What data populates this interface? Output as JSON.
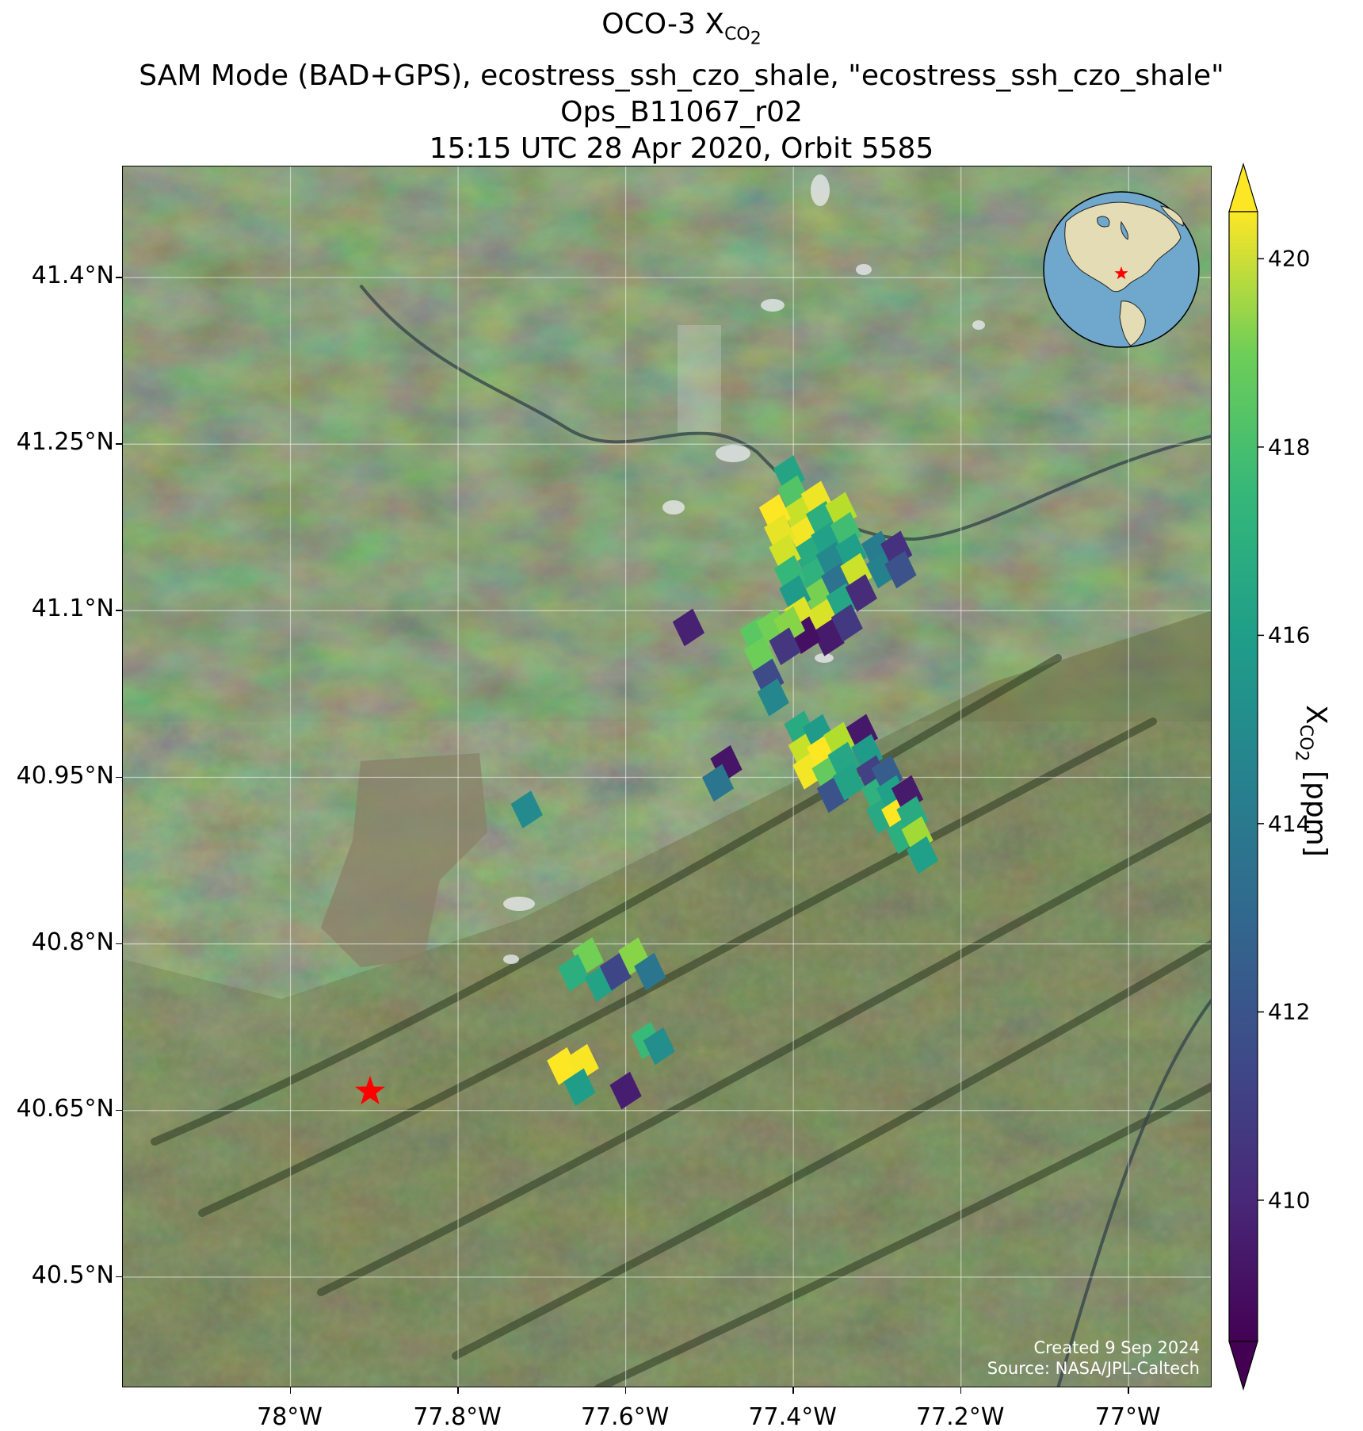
{
  "title": {
    "line1_main": "OCO-3 X",
    "line1_sub": "CO",
    "line1_sub2": "2",
    "line2": "SAM Mode (BAD+GPS), ecostress_ssh_czo_shale, \"ecostress_ssh_czo_shale\"",
    "line3": "Ops_B11067_r02",
    "line4": "15:15 UTC 28 Apr 2020, Orbit 5585"
  },
  "map": {
    "lon_range": [
      -78.2,
      -76.9
    ],
    "lat_range": [
      40.4,
      41.5
    ],
    "lat_ticks": [
      {
        "value": 41.4,
        "label": "41.4°N"
      },
      {
        "value": 41.25,
        "label": "41.25°N"
      },
      {
        "value": 41.1,
        "label": "41.1°N"
      },
      {
        "value": 40.95,
        "label": "40.95°N"
      },
      {
        "value": 40.8,
        "label": "40.8°N"
      },
      {
        "value": 40.65,
        "label": "40.65°N"
      },
      {
        "value": 40.5,
        "label": "40.5°N"
      }
    ],
    "lon_ticks": [
      {
        "value": -78.0,
        "label": "78°W"
      },
      {
        "value": -77.8,
        "label": "77.8°W"
      },
      {
        "value": -77.6,
        "label": "77.6°W"
      },
      {
        "value": -77.4,
        "label": "77.4°W"
      },
      {
        "value": -77.2,
        "label": "77.2°W"
      },
      {
        "value": -77.0,
        "label": "77°W"
      }
    ],
    "gridlines": true,
    "target_marker": {
      "lon": -77.905,
      "lat": 40.667,
      "color": "#ff0000",
      "icon": "star-icon"
    },
    "basemap": "satellite imagery",
    "colors": {
      "forest": "#3a5230",
      "valley": "#5a6238",
      "cloud": "#e6e8ea",
      "river": "#3c4a4a"
    }
  },
  "soundings": [
    {
      "lon": -77.405,
      "lat": 41.223,
      "v": 415.5
    },
    {
      "lon": -77.4,
      "lat": 41.205,
      "v": 417.2
    },
    {
      "lon": -77.394,
      "lat": 41.186,
      "v": 419.5
    },
    {
      "lon": -77.388,
      "lat": 41.168,
      "v": 420.3
    },
    {
      "lon": -77.382,
      "lat": 41.15,
      "v": 415.8
    },
    {
      "lon": -77.376,
      "lat": 41.131,
      "v": 416.2
    },
    {
      "lon": -77.37,
      "lat": 41.113,
      "v": 418.0
    },
    {
      "lon": -77.364,
      "lat": 41.094,
      "v": 419.8
    },
    {
      "lon": -77.358,
      "lat": 41.076,
      "v": 409.4
    },
    {
      "lon": -77.422,
      "lat": 41.188,
      "v": 420.5
    },
    {
      "lon": -77.416,
      "lat": 41.17,
      "v": 420.1
    },
    {
      "lon": -77.41,
      "lat": 41.152,
      "v": 419.7
    },
    {
      "lon": -77.404,
      "lat": 41.133,
      "v": 416.5
    },
    {
      "lon": -77.398,
      "lat": 41.115,
      "v": 415.0
    },
    {
      "lon": -77.392,
      "lat": 41.096,
      "v": 419.9
    },
    {
      "lon": -77.386,
      "lat": 41.078,
      "v": 409.0
    },
    {
      "lon": -77.372,
      "lat": 41.2,
      "v": 420.2
    },
    {
      "lon": -77.366,
      "lat": 41.182,
      "v": 416.0
    },
    {
      "lon": -77.36,
      "lat": 41.163,
      "v": 415.3
    },
    {
      "lon": -77.354,
      "lat": 41.145,
      "v": 414.1
    },
    {
      "lon": -77.348,
      "lat": 41.126,
      "v": 413.0
    },
    {
      "lon": -77.342,
      "lat": 41.108,
      "v": 415.6
    },
    {
      "lon": -77.336,
      "lat": 41.089,
      "v": 410.5
    },
    {
      "lon": -77.343,
      "lat": 41.19,
      "v": 419.2
    },
    {
      "lon": -77.337,
      "lat": 41.172,
      "v": 416.8
    },
    {
      "lon": -77.331,
      "lat": 41.153,
      "v": 415.2
    },
    {
      "lon": -77.325,
      "lat": 41.135,
      "v": 419.6
    },
    {
      "lon": -77.319,
      "lat": 41.116,
      "v": 410.0
    },
    {
      "lon": -77.3,
      "lat": 41.155,
      "v": 413.5
    },
    {
      "lon": -77.294,
      "lat": 41.137,
      "v": 413.8
    },
    {
      "lon": -77.277,
      "lat": 41.155,
      "v": 410.2
    },
    {
      "lon": -77.272,
      "lat": 41.137,
      "v": 411.5
    },
    {
      "lon": -77.445,
      "lat": 41.078,
      "v": 417.4
    },
    {
      "lon": -77.44,
      "lat": 41.06,
      "v": 417.8
    },
    {
      "lon": -77.425,
      "lat": 41.085,
      "v": 417.9
    },
    {
      "lon": -77.43,
      "lat": 41.04,
      "v": 411.2
    },
    {
      "lon": -77.424,
      "lat": 41.022,
      "v": 414.0
    },
    {
      "lon": -77.405,
      "lat": 41.087,
      "v": 418.3
    },
    {
      "lon": -77.41,
      "lat": 41.068,
      "v": 410.4
    },
    {
      "lon": -77.525,
      "lat": 41.085,
      "v": 409.6
    },
    {
      "lon": -77.392,
      "lat": 40.993,
      "v": 415.8
    },
    {
      "lon": -77.387,
      "lat": 40.974,
      "v": 419.5
    },
    {
      "lon": -77.382,
      "lat": 40.956,
      "v": 420.3
    },
    {
      "lon": -77.37,
      "lat": 40.99,
      "v": 415.0
    },
    {
      "lon": -77.365,
      "lat": 40.972,
      "v": 420.6
    },
    {
      "lon": -77.359,
      "lat": 40.953,
      "v": 417.6
    },
    {
      "lon": -77.353,
      "lat": 40.935,
      "v": 411.6
    },
    {
      "lon": -77.345,
      "lat": 40.983,
      "v": 419.1
    },
    {
      "lon": -77.34,
      "lat": 40.965,
      "v": 415.6
    },
    {
      "lon": -77.334,
      "lat": 40.946,
      "v": 415.4
    },
    {
      "lon": -77.318,
      "lat": 40.99,
      "v": 409.3
    },
    {
      "lon": -77.312,
      "lat": 40.972,
      "v": 415.0
    },
    {
      "lon": -77.306,
      "lat": 40.953,
      "v": 410.8
    },
    {
      "lon": -77.3,
      "lat": 40.935,
      "v": 416.2
    },
    {
      "lon": -77.294,
      "lat": 40.916,
      "v": 415.7
    },
    {
      "lon": -77.288,
      "lat": 40.953,
      "v": 412.0
    },
    {
      "lon": -77.282,
      "lat": 40.935,
      "v": 415.3
    },
    {
      "lon": -77.276,
      "lat": 40.916,
      "v": 420.5
    },
    {
      "lon": -77.27,
      "lat": 40.898,
      "v": 416.0
    },
    {
      "lon": -77.264,
      "lat": 40.935,
      "v": 409.4
    },
    {
      "lon": -77.258,
      "lat": 40.916,
      "v": 415.8
    },
    {
      "lon": -77.252,
      "lat": 40.898,
      "v": 418.8
    },
    {
      "lon": -77.246,
      "lat": 40.88,
      "v": 415.2
    },
    {
      "lon": -77.48,
      "lat": 40.962,
      "v": 409.2
    },
    {
      "lon": -77.49,
      "lat": 40.945,
      "v": 413.2
    },
    {
      "lon": -77.718,
      "lat": 40.921,
      "v": 414.2
    },
    {
      "lon": -77.645,
      "lat": 40.789,
      "v": 417.9
    },
    {
      "lon": -77.662,
      "lat": 40.774,
      "v": 416.0
    },
    {
      "lon": -77.63,
      "lat": 40.765,
      "v": 415.4
    },
    {
      "lon": -77.612,
      "lat": 40.775,
      "v": 411.0
    },
    {
      "lon": -77.59,
      "lat": 40.789,
      "v": 418.3
    },
    {
      "lon": -77.571,
      "lat": 40.775,
      "v": 413.2
    },
    {
      "lon": -77.575,
      "lat": 40.713,
      "v": 416.6
    },
    {
      "lon": -77.56,
      "lat": 40.708,
      "v": 414.4
    },
    {
      "lon": -77.675,
      "lat": 40.69,
      "v": 420.7
    },
    {
      "lon": -77.651,
      "lat": 40.693,
      "v": 420.4
    },
    {
      "lon": -77.655,
      "lat": 40.671,
      "v": 415.1
    },
    {
      "lon": -77.6,
      "lat": 40.668,
      "v": 409.5
    }
  ],
  "colorbar": {
    "vmin": 408.5,
    "vmax": 420.5,
    "ticks": [
      {
        "value": 410,
        "label": "410"
      },
      {
        "value": 412,
        "label": "412"
      },
      {
        "value": 414,
        "label": "414"
      },
      {
        "value": 416,
        "label": "416"
      },
      {
        "value": 418,
        "label": "418"
      },
      {
        "value": 420,
        "label": "420"
      }
    ],
    "label_main": "X",
    "label_sub": "CO",
    "label_sub2": "2",
    "label_units": " [ppm]",
    "colormap": "viridis",
    "extend": "both"
  },
  "globe": {
    "center_lon": -80,
    "center_lat": 30,
    "colors": {
      "ocean": "#6fa8cc",
      "land": "#e4dcb4",
      "border": "#000000"
    },
    "marker": {
      "color": "#ff0000",
      "icon": "star-icon"
    }
  },
  "credits": {
    "created": "Created 9 Sep 2024",
    "source": "Source: NASA/JPL-Caltech"
  }
}
